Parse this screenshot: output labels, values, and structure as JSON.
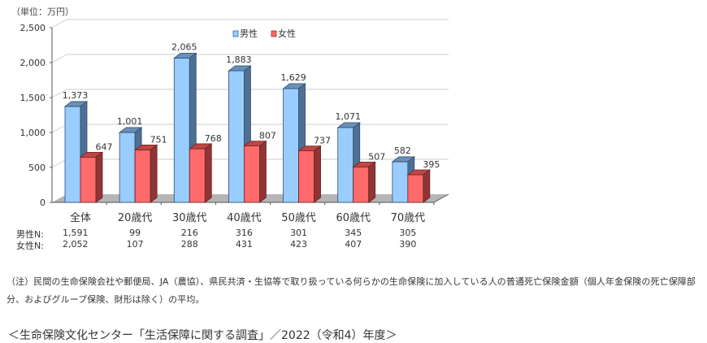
{
  "chart_data": {
    "type": "bar",
    "title": "",
    "unit_label": "（単位：万円）",
    "xlabel": "",
    "ylabel": "",
    "ylim": [
      0,
      2500
    ],
    "yticks": [
      "0",
      "500",
      "1,000",
      "1,500",
      "2,000",
      "2,500"
    ],
    "grid": true,
    "legend_position": "top",
    "categories": [
      "全体",
      "20歳代",
      "30歳代",
      "40歳代",
      "50歳代",
      "60歳代",
      "70歳代"
    ],
    "series": [
      {
        "name": "男性",
        "color": "#99CCFF",
        "values": [
          1373,
          1001,
          2065,
          1883,
          1629,
          1071,
          582
        ],
        "labels": [
          "1,373",
          "1,001",
          "2,065",
          "1,883",
          "1,629",
          "1,071",
          "582"
        ]
      },
      {
        "name": "女性",
        "color": "#FF6666",
        "values": [
          647,
          751,
          768,
          807,
          737,
          507,
          395
        ],
        "labels": [
          "647",
          "751",
          "768",
          "807",
          "737",
          "507",
          "395"
        ]
      }
    ],
    "sample_sizes": {
      "male_label": "男性N:",
      "female_label": "女性N:",
      "male": [
        "1,591",
        "99",
        "216",
        "316",
        "301",
        "345",
        "305"
      ],
      "female": [
        "2,052",
        "107",
        "288",
        "431",
        "423",
        "407",
        "390"
      ]
    }
  },
  "note": "（注）民間の生命保険会社や郵便局、JA（農協）、県民共済・生協等で取り扱っている何らかの生命保険に加入している人の普通死亡保険金額（個人年金保険の死亡保障部分、およびグループ保険、財形は除く）の平均。",
  "source": "＜生命保険文化センター「生活保障に関する調査」／2022（令和4）年度＞"
}
